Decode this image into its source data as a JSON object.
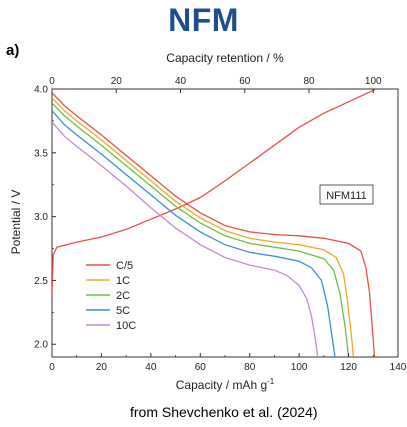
{
  "header": {
    "title": "NFM",
    "panel_label": "a)",
    "source": "from Shevchenko et al. (2024)"
  },
  "chart_data": {
    "type": "line",
    "title": "",
    "xlabel": "Capacity / mAh g",
    "xlabel_sup": "-1",
    "ylabel": "Potential / V",
    "x2label": "Capacity retention / %",
    "xlim": [
      0,
      140
    ],
    "ylim": [
      1.9,
      4.0
    ],
    "x2lim": [
      0,
      107.7
    ],
    "xticks": [
      "0",
      "20",
      "40",
      "60",
      "80",
      "100",
      "120",
      "140"
    ],
    "yticks": [
      "2.0",
      "2.5",
      "3.0",
      "3.5",
      "4.0"
    ],
    "x2ticks": [
      "0",
      "20",
      "40",
      "60",
      "80",
      "100"
    ],
    "grid": false,
    "legend": "bottom-left",
    "annotation": "NFM111",
    "series": [
      {
        "name": "C/5",
        "color": "#e8504a",
        "charge": [
          [
            0,
            2.4
          ],
          [
            0.5,
            2.7
          ],
          [
            2,
            2.76
          ],
          [
            10,
            2.8
          ],
          [
            20,
            2.84
          ],
          [
            30,
            2.9
          ],
          [
            40,
            2.98
          ],
          [
            50,
            3.06
          ],
          [
            60,
            3.15
          ],
          [
            70,
            3.28
          ],
          [
            80,
            3.42
          ],
          [
            90,
            3.56
          ],
          [
            100,
            3.7
          ],
          [
            110,
            3.81
          ],
          [
            120,
            3.9
          ],
          [
            130,
            3.99
          ],
          [
            131,
            4.0
          ]
        ],
        "discharge": [
          [
            0,
            3.97
          ],
          [
            5,
            3.87
          ],
          [
            10,
            3.79
          ],
          [
            20,
            3.64
          ],
          [
            30,
            3.48
          ],
          [
            40,
            3.32
          ],
          [
            50,
            3.16
          ],
          [
            60,
            3.03
          ],
          [
            70,
            2.93
          ],
          [
            80,
            2.88
          ],
          [
            90,
            2.86
          ],
          [
            100,
            2.85
          ],
          [
            110,
            2.83
          ],
          [
            120,
            2.79
          ],
          [
            125,
            2.73
          ],
          [
            127,
            2.6
          ],
          [
            128.5,
            2.4
          ],
          [
            129.5,
            2.15
          ],
          [
            130.5,
            1.9
          ]
        ]
      },
      {
        "name": "1C",
        "color": "#f5a623",
        "discharge": [
          [
            0,
            3.93
          ],
          [
            5,
            3.83
          ],
          [
            10,
            3.75
          ],
          [
            20,
            3.6
          ],
          [
            30,
            3.44
          ],
          [
            40,
            3.28
          ],
          [
            50,
            3.12
          ],
          [
            60,
            2.99
          ],
          [
            70,
            2.89
          ],
          [
            80,
            2.83
          ],
          [
            90,
            2.8
          ],
          [
            100,
            2.78
          ],
          [
            110,
            2.74
          ],
          [
            115,
            2.68
          ],
          [
            118,
            2.55
          ],
          [
            119.5,
            2.35
          ],
          [
            121,
            2.1
          ],
          [
            122,
            1.9
          ]
        ]
      },
      {
        "name": "2C",
        "color": "#6abf4b",
        "discharge": [
          [
            0,
            3.89
          ],
          [
            5,
            3.79
          ],
          [
            10,
            3.71
          ],
          [
            20,
            3.56
          ],
          [
            30,
            3.4
          ],
          [
            40,
            3.24
          ],
          [
            50,
            3.08
          ],
          [
            60,
            2.95
          ],
          [
            70,
            2.85
          ],
          [
            80,
            2.79
          ],
          [
            90,
            2.76
          ],
          [
            100,
            2.73
          ],
          [
            110,
            2.67
          ],
          [
            114,
            2.58
          ],
          [
            116.5,
            2.4
          ],
          [
            118.5,
            2.15
          ],
          [
            120,
            1.9
          ]
        ]
      },
      {
        "name": "5C",
        "color": "#3b8fd9",
        "discharge": [
          [
            0,
            3.83
          ],
          [
            5,
            3.72
          ],
          [
            10,
            3.64
          ],
          [
            20,
            3.49
          ],
          [
            30,
            3.33
          ],
          [
            40,
            3.17
          ],
          [
            50,
            3.01
          ],
          [
            60,
            2.88
          ],
          [
            70,
            2.78
          ],
          [
            80,
            2.72
          ],
          [
            90,
            2.69
          ],
          [
            100,
            2.65
          ],
          [
            105,
            2.6
          ],
          [
            109,
            2.5
          ],
          [
            111.5,
            2.3
          ],
          [
            113,
            2.1
          ],
          [
            114.5,
            1.9
          ]
        ]
      },
      {
        "name": "10C",
        "color": "#c58ad6",
        "discharge": [
          [
            0,
            3.74
          ],
          [
            5,
            3.63
          ],
          [
            10,
            3.55
          ],
          [
            20,
            3.4
          ],
          [
            30,
            3.24
          ],
          [
            40,
            3.07
          ],
          [
            50,
            2.91
          ],
          [
            60,
            2.78
          ],
          [
            70,
            2.68
          ],
          [
            80,
            2.62
          ],
          [
            90,
            2.58
          ],
          [
            95,
            2.54
          ],
          [
            100,
            2.46
          ],
          [
            103,
            2.36
          ],
          [
            105,
            2.22
          ],
          [
            106.5,
            2.05
          ],
          [
            107.5,
            1.9
          ]
        ]
      }
    ]
  }
}
